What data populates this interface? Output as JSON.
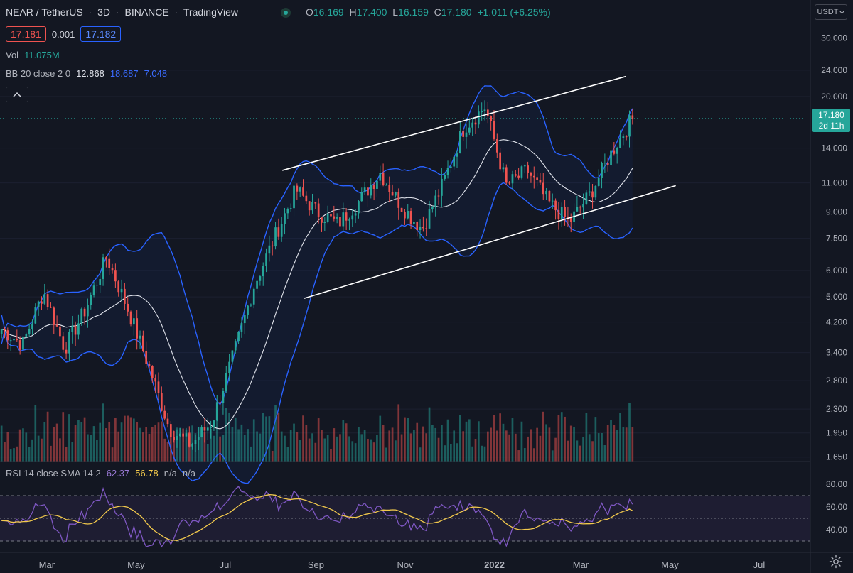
{
  "header": {
    "symbol": "NEAR / TetherUS",
    "interval": "3D",
    "exchange": "BINANCE",
    "source": "TradingView",
    "ohlc": {
      "o_label": "O",
      "o": "16.169",
      "h_label": "H",
      "h": "17.400",
      "l_label": "L",
      "l": "16.159",
      "c_label": "C",
      "c": "17.180",
      "change": "+1.011 (+6.25%)"
    }
  },
  "trade": {
    "bid": "17.181",
    "spread": "0.001",
    "ask": "17.182"
  },
  "volume_legend": {
    "label": "Vol",
    "value": "11.075M"
  },
  "bb_legend": {
    "label": "BB 20 close 2 0",
    "basis": "12.868",
    "upper": "18.687",
    "lower": "7.048"
  },
  "rsi_legend": {
    "label": "RSI 14 close SMA 14 2",
    "rsi": "62.37",
    "sma": "56.78",
    "na1": "n/a",
    "na2": "n/a"
  },
  "currency_select": {
    "value": "USDT"
  },
  "price_badge": {
    "price": "17.180",
    "countdown": "2d 11h"
  },
  "colors": {
    "up": "#26a69a",
    "down": "#ef5350",
    "bb_band": "#2962ff",
    "bb_basis": "#e0e3eb",
    "rsi": "#7e57c2",
    "rsi_sma": "#f2c94c"
  },
  "chart_data": {
    "type": "candlestick",
    "y_scale": "log",
    "ylim": [
      1.6,
      34
    ],
    "y_ticks": [
      "30.000",
      "24.000",
      "20.000",
      "14.000",
      "11.000",
      "9.000",
      "7.500",
      "6.000",
      "5.000",
      "4.200",
      "3.400",
      "2.800",
      "2.300",
      "1.950",
      "1.650"
    ],
    "x_ticks": [
      "Mar",
      "May",
      "Jul",
      "Sep",
      "Nov",
      "2022",
      "Mar",
      "May",
      "Jul"
    ],
    "x_range": [
      "2021-01-28",
      "2022-08-05"
    ],
    "last_price": 17.18,
    "ohlc_seed": [
      4.0,
      3.6,
      5.2,
      3.5,
      4.6,
      6.6,
      4.6,
      3.1,
      2.0,
      1.8,
      2.1,
      3.3,
      5.4,
      7.6,
      10.5,
      9.0,
      8.3,
      9.7,
      11.8,
      9.4,
      8.0,
      11.0,
      16.2,
      18.6,
      10.8,
      12.0,
      9.6,
      8.4,
      10.2,
      13.6,
      17.2
    ],
    "ohlc_seed_note": "",
    "trend_channel": [
      {
        "from": [
          "2021-08-09",
          12.0
        ],
        "to": [
          "2022-04-01",
          23.0
        ]
      },
      {
        "from": [
          "2021-08-24",
          4.95
        ],
        "to": [
          "2022-05-05",
          10.8
        ]
      }
    ],
    "rsi": {
      "ylim": [
        20,
        100
      ],
      "ticks": [
        "80.00",
        "60.00",
        "40.00"
      ],
      "upper_band": 70,
      "lower_band": 30,
      "mid_line": 50
    }
  }
}
